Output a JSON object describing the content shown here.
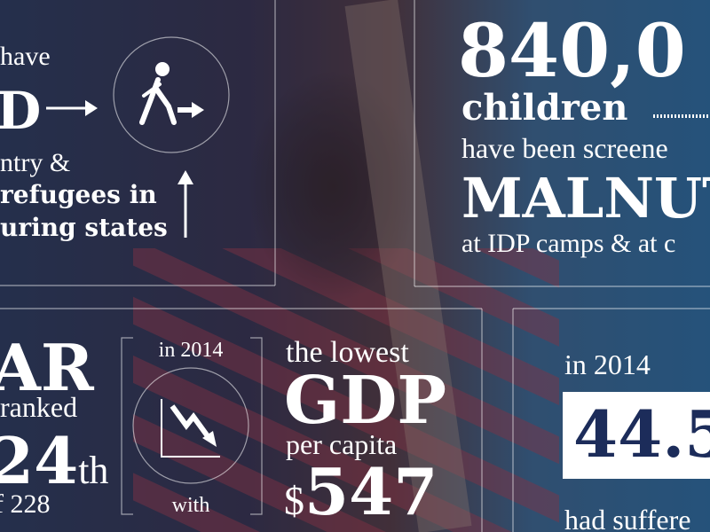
{
  "left_panel": {
    "line1": "have",
    "line2": "D",
    "line3": "ntry &",
    "line4": "refugees in",
    "line5": "uring states"
  },
  "top_right": {
    "number": "840,0",
    "line2": "children",
    "line3": "have been screene",
    "line4": "MALNUT",
    "line5": "at IDP camps & at c"
  },
  "rank_panel": {
    "line1": "AR",
    "line2": "ranked",
    "rank": "24",
    "suffix": "th",
    "line4": "f 228"
  },
  "icon_panel": {
    "top": "in 2014",
    "bottom": "with"
  },
  "gdp_panel": {
    "line1": "the lowest",
    "line2": "GDP",
    "line3": "per capita",
    "currency": "$",
    "amount": "547"
  },
  "bottom_right": {
    "line1": "in 2014",
    "figure": "44.5",
    "line3": "had suffere"
  }
}
